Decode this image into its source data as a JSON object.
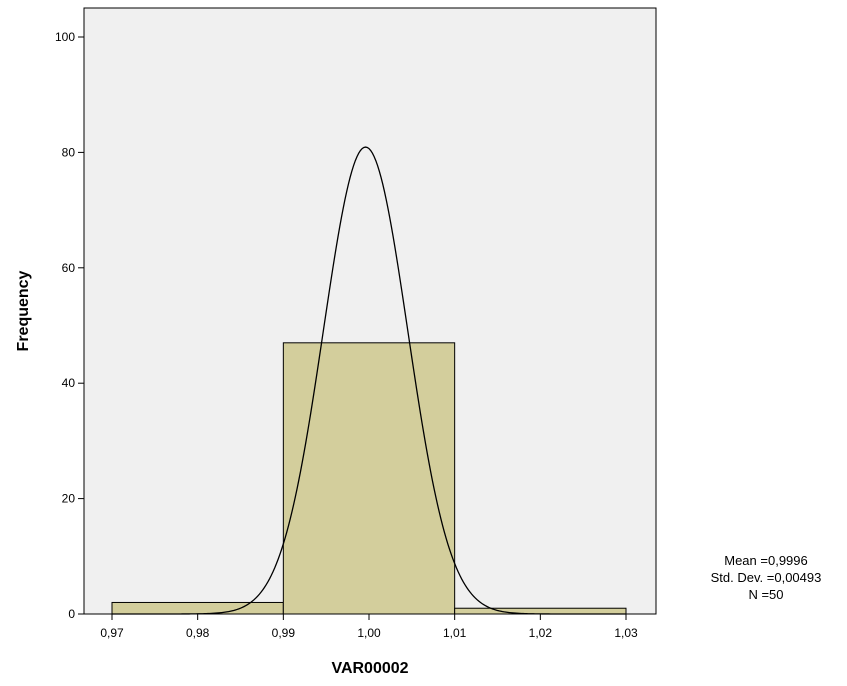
{
  "chart_data": {
    "type": "bar",
    "title": "",
    "xlabel": "VAR00002",
    "ylabel": "Frequency",
    "xlim": [
      0.965,
      1.033
    ],
    "ylim": [
      0,
      105
    ],
    "x_ticks": [
      {
        "value": 0.97,
        "label": "0,97"
      },
      {
        "value": 0.98,
        "label": "0,98"
      },
      {
        "value": 0.99,
        "label": "0,99"
      },
      {
        "value": 1.0,
        "label": "1,00"
      },
      {
        "value": 1.01,
        "label": "1,01"
      },
      {
        "value": 1.02,
        "label": "1,02"
      },
      {
        "value": 1.03,
        "label": "1,03"
      }
    ],
    "y_ticks": [
      {
        "value": 0,
        "label": "0"
      },
      {
        "value": 20,
        "label": "20"
      },
      {
        "value": 40,
        "label": "40"
      },
      {
        "value": 60,
        "label": "60"
      },
      {
        "value": 80,
        "label": "80"
      },
      {
        "value": 100,
        "label": "100"
      }
    ],
    "bins": [
      {
        "start": 0.97,
        "end": 0.99,
        "count": 2
      },
      {
        "start": 0.99,
        "end": 1.01,
        "count": 47
      },
      {
        "start": 1.01,
        "end": 1.03,
        "count": 1
      }
    ],
    "normal_curve": {
      "mean": 0.9996,
      "std_dev": 0.00493,
      "n": 50,
      "bin_width": 0.02
    },
    "stats_box": {
      "mean_text": "Mean =0,9996",
      "std_text": "Std. Dev. =0,00493",
      "n_text": "N =50"
    },
    "grid": false,
    "colors": {
      "plot_background": "#f0f0f0",
      "bar_fill": "#d3ce9c",
      "bar_stroke": "#000000",
      "curve_stroke": "#000000",
      "axis_stroke": "#000000"
    }
  }
}
